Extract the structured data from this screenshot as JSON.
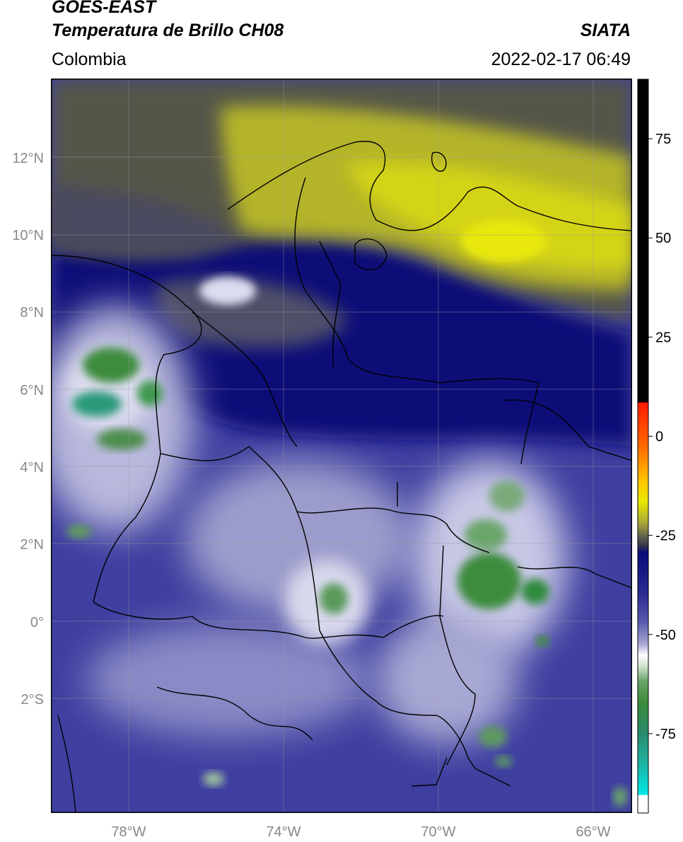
{
  "header": {
    "satellite": "GOES-EAST",
    "product": "Temperatura de Brillo CH08",
    "organization": "SIATA",
    "region": "Colombia",
    "datetime": "2022-02-17 06:49"
  },
  "axes": {
    "lat_labels": [
      "12°N",
      "10°N",
      "8°N",
      "6°N",
      "4°N",
      "2°N",
      "0°",
      "2°S"
    ],
    "lat_values": [
      12,
      10,
      8,
      6,
      4,
      2,
      0,
      -2
    ],
    "lon_labels": [
      "78°W",
      "74°W",
      "70°W",
      "66°W"
    ],
    "lon_values": [
      -78,
      -74,
      -70,
      -66
    ],
    "lat_range": [
      -4.9,
      13.8
    ],
    "lon_range": [
      -80.0,
      -65.0
    ],
    "grid": true
  },
  "colorbar": {
    "tick_labels": [
      "75",
      "50",
      "25",
      "0",
      "-25",
      "-50",
      "-75"
    ],
    "tick_values": [
      75,
      50,
      25,
      0,
      -25,
      -50,
      -75
    ],
    "range": [
      -95,
      90
    ],
    "colors": {
      "warm_cap": "#000000",
      "red": "#ff2a00",
      "orange": "#ff9a00",
      "yellow": "#e8e800",
      "olive": "#a8a838",
      "gray": "#5a5a50",
      "navy": "#0a0a7a",
      "blue": "#3a3aa0",
      "lavender": "#c8c8e8",
      "white": "#ffffff",
      "green": "#3a8a3a",
      "teal": "#20b090",
      "cyan": "#00e0e0"
    }
  },
  "map_colors": {
    "clear_sky_gray": "#4e5048",
    "dry_yellow": "#c8c820",
    "navy": "#0c0c78",
    "blue": "#3c3ca0",
    "light": "#d8d8ec",
    "green": "#3e8c3e",
    "borders": "#000000"
  }
}
